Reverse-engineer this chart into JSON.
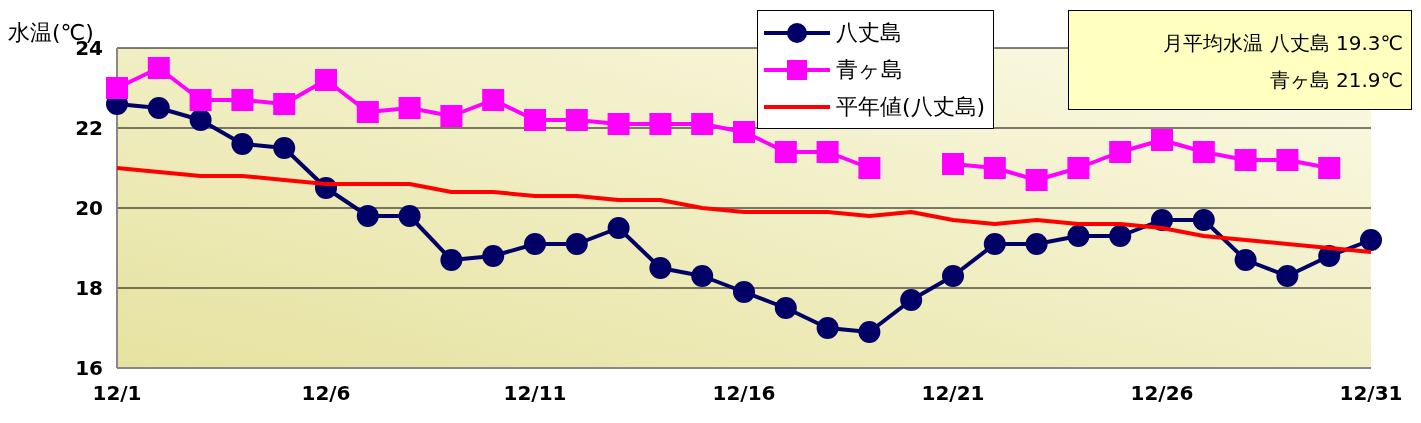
{
  "chart_data": {
    "type": "line",
    "ylabel": "水温(℃)",
    "categories": [
      "12/1",
      null,
      null,
      null,
      null,
      "12/6",
      null,
      null,
      null,
      null,
      "12/11",
      null,
      null,
      null,
      null,
      "12/16",
      null,
      null,
      null,
      null,
      "12/21",
      null,
      null,
      null,
      null,
      "12/26",
      null,
      null,
      null,
      null,
      "12/31"
    ],
    "series": [
      {
        "name": "八丈島",
        "color": "#000066",
        "marker": "circle",
        "values": [
          22.6,
          22.5,
          22.2,
          21.6,
          21.5,
          20.5,
          19.8,
          19.8,
          18.7,
          18.8,
          19.1,
          19.1,
          19.5,
          18.5,
          18.3,
          17.9,
          17.5,
          17.0,
          16.9,
          17.7,
          18.3,
          19.1,
          19.1,
          19.3,
          19.3,
          19.7,
          19.7,
          18.7,
          18.3,
          18.8,
          19.2
        ]
      },
      {
        "name": "青ヶ島",
        "color": "#ff00ff",
        "marker": "square",
        "values": [
          23.0,
          23.5,
          22.7,
          22.7,
          22.6,
          23.2,
          22.4,
          22.5,
          22.3,
          22.7,
          22.2,
          22.2,
          22.1,
          22.1,
          22.1,
          21.9,
          21.4,
          21.4,
          21.0,
          null,
          21.1,
          21.0,
          20.7,
          21.0,
          21.4,
          21.7,
          21.4,
          21.2,
          21.2,
          21.0,
          null
        ]
      },
      {
        "name": "平年値(八丈島)",
        "color": "#ff0000",
        "marker": "none",
        "values": [
          21.0,
          20.9,
          20.8,
          20.8,
          20.7,
          20.6,
          20.6,
          20.6,
          20.4,
          20.4,
          20.3,
          20.3,
          20.2,
          20.2,
          20.0,
          19.9,
          19.9,
          19.9,
          19.8,
          19.9,
          19.7,
          19.6,
          19.7,
          19.6,
          19.6,
          19.5,
          19.3,
          19.2,
          19.1,
          19.0,
          18.9
        ]
      }
    ],
    "ylim": [
      16,
      24
    ],
    "yticks": [
      16,
      18,
      20,
      22,
      24
    ],
    "grid": "y",
    "legend": "top right",
    "line_style": "solid",
    "annotations": [
      "月平均水温 八丈島 19.3℃",
      "青ヶ島 21.9℃"
    ]
  }
}
